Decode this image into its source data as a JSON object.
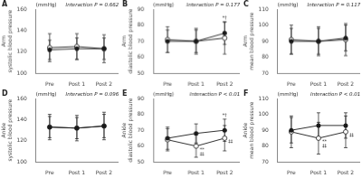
{
  "chart_data": [
    {
      "type": "line",
      "title": "A",
      "subtitle": "(mmHg)",
      "ylabel": "Arm\nsystolic blood pressure",
      "categories": [
        "Pre",
        "Post 1",
        "Post 2"
      ],
      "ylim": [
        100,
        160
      ],
      "yticks": [
        100,
        120,
        140,
        160
      ],
      "grid": false,
      "series": [
        {
          "color": "#1a1a1a",
          "marker": "filled",
          "values": [
            122,
            123,
            123
          ],
          "error": [
            9,
            10,
            10
          ]
        },
        {
          "color": "#1a1a1a",
          "marker": "open",
          "values": [
            124,
            125,
            123
          ],
          "error": [
            13,
            12,
            13
          ]
        }
      ],
      "annotations": [
        {
          "text": "Interaction P = 0.662",
          "position": "top right"
        }
      ]
    },
    {
      "type": "line",
      "title": "B",
      "subtitle": "(mmHg)",
      "ylabel": "Arm\ndiastolic blood pressure",
      "categories": [
        "Pre",
        "Post 1",
        "Post 2"
      ],
      "ylim": [
        50,
        90
      ],
      "yticks": [
        50,
        60,
        70,
        80,
        90
      ],
      "grid": false,
      "series": [
        {
          "color": "#1a1a1a",
          "marker": "filled",
          "values": [
            70,
            70,
            75
          ],
          "error": [
            7,
            7,
            7
          ]
        },
        {
          "color": "#1a1a1a",
          "marker": "open",
          "values": [
            71,
            70,
            72
          ],
          "error": [
            8,
            8,
            10
          ]
        }
      ],
      "annotations": [
        {
          "text": "Interaction P = 0.177",
          "position": "top right"
        },
        {
          "text": "*†",
          "x": "Post 2",
          "series": 0,
          "position": "above"
        }
      ]
    },
    {
      "type": "line",
      "title": "C",
      "subtitle": "(mmHg)",
      "ylabel": "Arm\nmean blood pressure",
      "categories": [
        "Pre",
        "Post 1",
        "Post 2"
      ],
      "ylim": [
        70,
        110
      ],
      "yticks": [
        70,
        80,
        90,
        100,
        110
      ],
      "grid": false,
      "series": [
        {
          "color": "#1a1a1a",
          "marker": "filled",
          "values": [
            90,
            90,
            92
          ],
          "error": [
            8,
            8,
            8
          ]
        },
        {
          "color": "#1a1a1a",
          "marker": "open",
          "values": [
            91,
            90,
            91
          ],
          "error": [
            9,
            9,
            10
          ]
        }
      ],
      "annotations": [
        {
          "text": "Interaction P = 0.117",
          "position": "top right"
        }
      ]
    },
    {
      "type": "line",
      "title": "D",
      "subtitle": "(mmHg)",
      "ylabel": "Ankle\nsystolic blood pressure",
      "categories": [
        "Pre",
        "Post 1",
        "Post 2"
      ],
      "ylim": [
        100,
        160
      ],
      "yticks": [
        100,
        120,
        140,
        160
      ],
      "grid": false,
      "series": [
        {
          "color": "#1a1a1a",
          "marker": "filled",
          "values": [
            133,
            132,
            134
          ],
          "error": [
            10,
            10,
            11
          ]
        },
        {
          "color": "#1a1a1a",
          "marker": "open",
          "values": [
            133,
            132,
            134
          ],
          "error": [
            12,
            12,
            13
          ]
        }
      ],
      "annotations": [
        {
          "text": "Interaction P = 0.096",
          "position": "top right"
        }
      ]
    },
    {
      "type": "line",
      "title": "E",
      "subtitle": "(mmHg)",
      "ylabel": "Ankle\ndiastolic blood pressure",
      "categories": [
        "Pre",
        "Post 1",
        "Post 2"
      ],
      "ylim": [
        50,
        90
      ],
      "yticks": [
        50,
        60,
        70,
        80,
        90
      ],
      "grid": false,
      "series": [
        {
          "color": "#1a1a1a",
          "marker": "filled",
          "values": [
            65,
            68,
            70
          ],
          "error": [
            7,
            6,
            7
          ]
        },
        {
          "color": "#1a1a1a",
          "marker": "open",
          "values": [
            64,
            60,
            65
          ],
          "error": [
            7,
            7,
            8
          ]
        }
      ],
      "annotations": [
        {
          "text": "Interaction P < 0.01",
          "position": "top right"
        },
        {
          "text": "*†",
          "x": "Post 2",
          "series": 0,
          "position": "above"
        },
        {
          "text": "**\n‡‡",
          "x": "Post 1",
          "series": 1,
          "position": "below right"
        },
        {
          "text": "‡‡",
          "x": "Post 2",
          "series": 1,
          "position": "below right"
        }
      ]
    },
    {
      "type": "line",
      "title": "F",
      "subtitle": "(mmHg)",
      "ylabel": "Ankle\nmean blood pressure",
      "categories": [
        "Pre",
        "Post 1",
        "Post 2"
      ],
      "ylim": [
        70,
        110
      ],
      "yticks": [
        70,
        80,
        90,
        100,
        110
      ],
      "grid": false,
      "series": [
        {
          "color": "#1a1a1a",
          "marker": "filled",
          "values": [
            90,
            93,
            93
          ],
          "error": [
            8,
            8,
            8
          ]
        },
        {
          "color": "#1a1a1a",
          "marker": "open",
          "values": [
            89,
            85,
            89
          ],
          "error": [
            10,
            10,
            10
          ]
        }
      ],
      "annotations": [
        {
          "text": "Interaction P < 0.01",
          "position": "top right"
        },
        {
          "text": "**\n‡‡",
          "x": "Post 1",
          "series": 1,
          "position": "below right"
        },
        {
          "text": "‡‡",
          "x": "Post 2",
          "series": 1,
          "position": "below right"
        }
      ]
    }
  ]
}
